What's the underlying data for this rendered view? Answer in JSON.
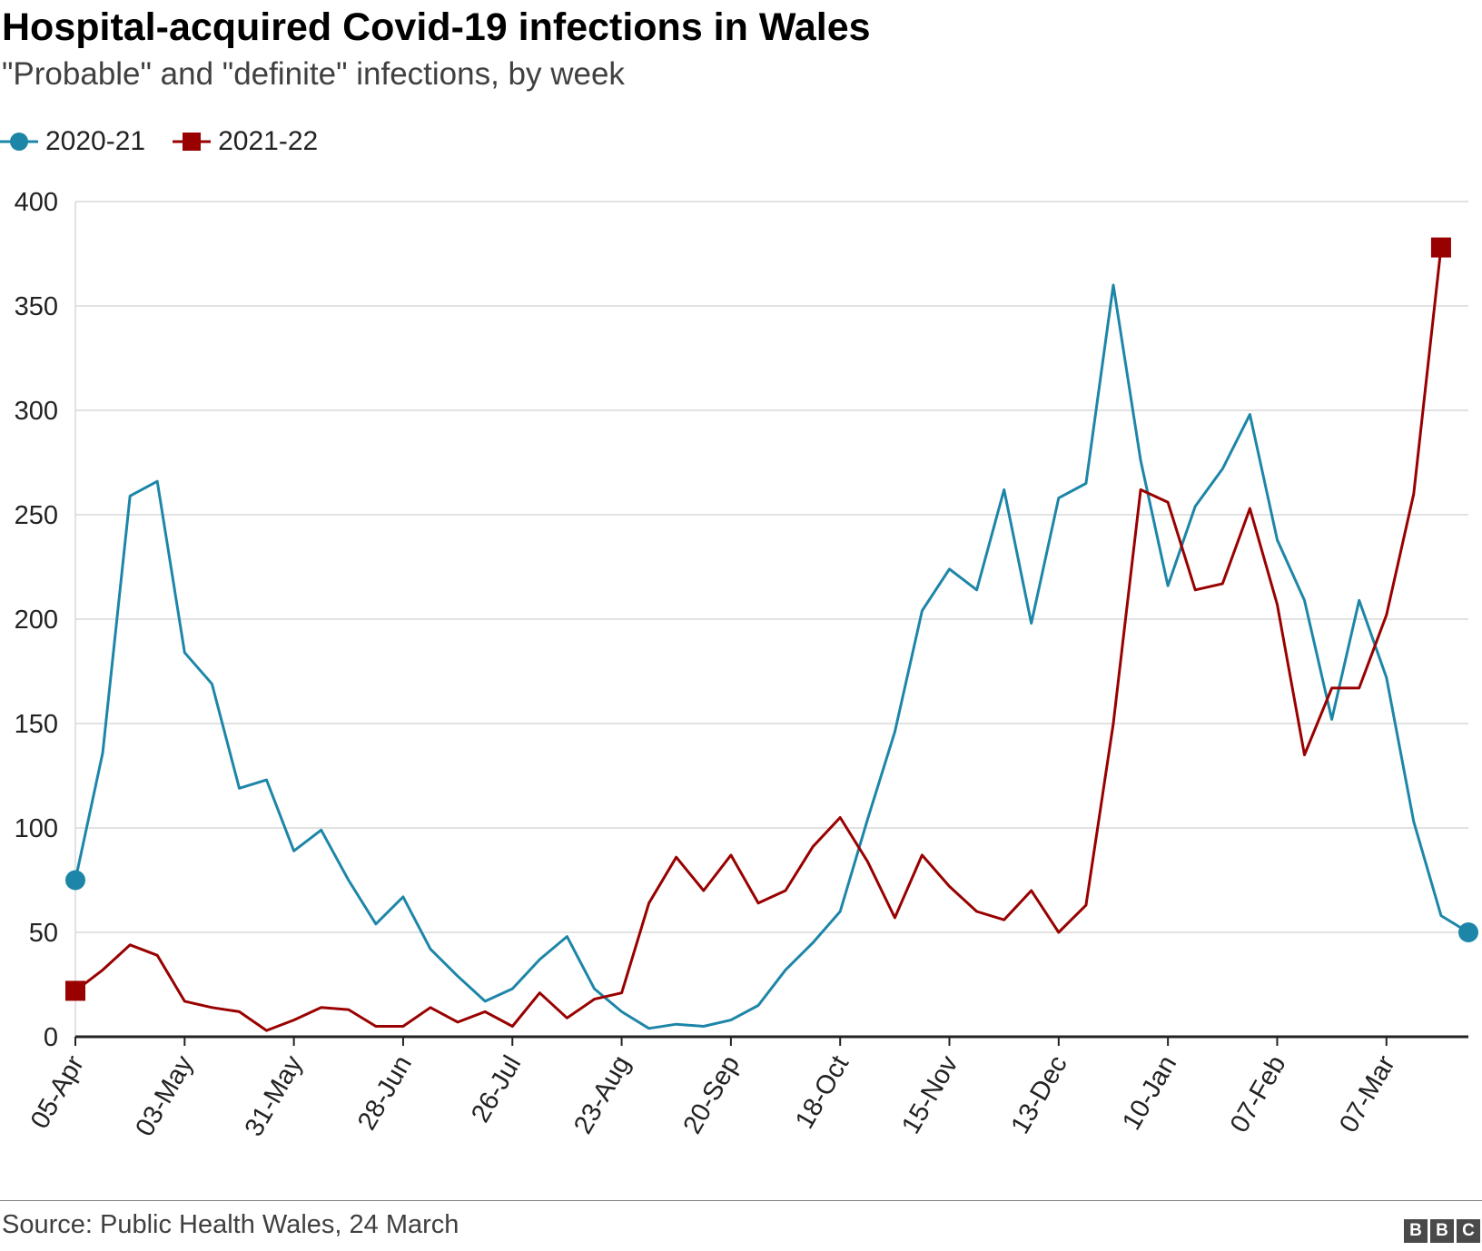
{
  "chart_data": {
    "type": "line",
    "title": "Hospital-acquired Covid-19 infections in Wales",
    "subtitle": "\"Probable\" and \"definite\" infections, by week",
    "xlabel": "",
    "ylabel": "",
    "ylim": [
      0,
      400
    ],
    "yticks": [
      0,
      50,
      100,
      150,
      200,
      250,
      300,
      350,
      400
    ],
    "xtick_labels": [
      "05-Apr",
      "03-May",
      "31-May",
      "28-Jun",
      "26-Jul",
      "23-Aug",
      "20-Sep",
      "18-Oct",
      "15-Nov",
      "13-Dec",
      "10-Jan",
      "07-Feb",
      "07-Mar"
    ],
    "xtick_step_weeks": 4,
    "n_weeks": 52,
    "grid": true,
    "legend": "top-left",
    "series": [
      {
        "name": "2020-21",
        "color": "#1d86a8",
        "marker": "circle",
        "values": [
          75,
          136,
          259,
          266,
          184,
          169,
          119,
          123,
          89,
          99,
          75,
          54,
          67,
          42,
          29,
          17,
          23,
          37,
          48,
          23,
          12,
          4,
          6,
          5,
          8,
          15,
          32,
          45,
          60,
          104,
          146,
          204,
          224,
          214,
          262,
          198,
          258,
          265,
          360,
          276,
          216,
          254,
          272,
          298,
          238,
          209,
          152,
          209,
          172,
          103,
          58,
          50
        ]
      },
      {
        "name": "2021-22",
        "color": "#990000",
        "marker": "square",
        "values": [
          22,
          32,
          44,
          39,
          17,
          14,
          12,
          3,
          8,
          14,
          13,
          5,
          5,
          14,
          7,
          12,
          5,
          21,
          9,
          18,
          21,
          64,
          86,
          70,
          87,
          64,
          70,
          91,
          105,
          84,
          57,
          87,
          72,
          60,
          56,
          70,
          50,
          63,
          150,
          262,
          256,
          214,
          217,
          253,
          207,
          135,
          167,
          167,
          202,
          260,
          378
        ]
      }
    ]
  },
  "footer": {
    "source": "Source: Public Health Wales, 24 March",
    "logo_letters": [
      "B",
      "B",
      "C"
    ]
  }
}
